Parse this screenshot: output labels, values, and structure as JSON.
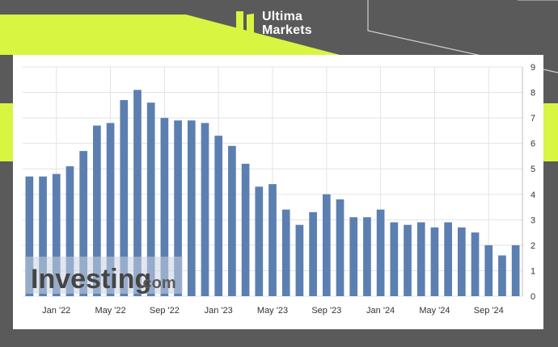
{
  "brand": {
    "line1": "Ultima",
    "line2": "Markets"
  },
  "colors": {
    "accent_green": "#d8f542",
    "background": "#5a5a5a",
    "bar": "#5b7fb0",
    "grid": "#e3e3e3"
  },
  "watermark": {
    "main": "Investing",
    "suffix": ".com"
  },
  "chart_data": {
    "type": "bar",
    "title": "",
    "xlabel": "",
    "ylabel": "",
    "ylim": [
      0,
      9
    ],
    "y_axis_position": "right",
    "y_ticks": [
      0,
      1,
      2,
      3,
      4,
      5,
      6,
      7,
      8,
      9
    ],
    "grid": true,
    "categories": [
      "Nov '21",
      "Dec '21",
      "Jan '22",
      "Feb '22",
      "Mar '22",
      "Apr '22",
      "May '22",
      "Jun '22",
      "Jul '22",
      "Aug '22",
      "Sep '22",
      "Oct '22",
      "Nov '22",
      "Dec '22",
      "Jan '23",
      "Feb '23",
      "Mar '23",
      "Apr '23",
      "May '23",
      "Jun '23",
      "Jul '23",
      "Aug '23",
      "Sep '23",
      "Oct '23",
      "Nov '23",
      "Dec '23",
      "Jan '24",
      "Feb '24",
      "Mar '24",
      "Apr '24",
      "May '24",
      "Jun '24",
      "Jul '24",
      "Aug '24",
      "Sep '24",
      "Oct '24",
      "Nov '24"
    ],
    "values": [
      4.7,
      4.7,
      4.8,
      5.1,
      5.7,
      6.7,
      6.8,
      7.7,
      8.1,
      7.6,
      7.0,
      6.9,
      6.9,
      6.8,
      6.3,
      5.9,
      5.2,
      4.3,
      4.4,
      3.4,
      2.8,
      3.3,
      4.0,
      3.8,
      3.1,
      3.1,
      3.4,
      2.9,
      2.8,
      2.9,
      2.7,
      2.9,
      2.7,
      2.5,
      2.0,
      1.6,
      2.0
    ],
    "x_tick_labels": [
      {
        "label": "Jan '22",
        "index": 2
      },
      {
        "label": "May '22",
        "index": 6
      },
      {
        "label": "Sep '22",
        "index": 10
      },
      {
        "label": "Jan '23",
        "index": 14
      },
      {
        "label": "May '23",
        "index": 18
      },
      {
        "label": "Sep '23",
        "index": 22
      },
      {
        "label": "Jan '24",
        "index": 26
      },
      {
        "label": "May '24",
        "index": 30
      },
      {
        "label": "Sep '24",
        "index": 34
      }
    ]
  }
}
